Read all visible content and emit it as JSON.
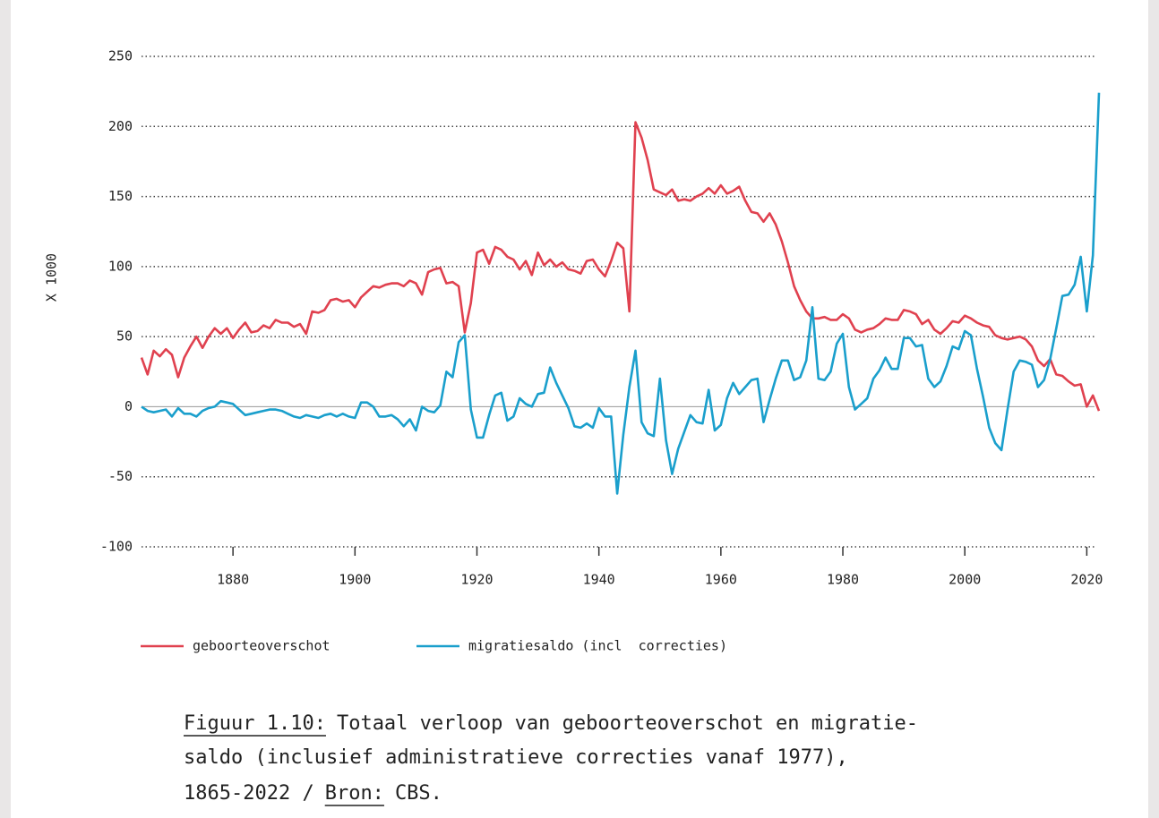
{
  "chart_data": {
    "type": "line",
    "y_axis_label": "X 1000",
    "x": [
      1865,
      1866,
      1867,
      1868,
      1869,
      1870,
      1871,
      1872,
      1873,
      1874,
      1875,
      1876,
      1877,
      1878,
      1879,
      1880,
      1881,
      1882,
      1883,
      1884,
      1885,
      1886,
      1887,
      1888,
      1889,
      1890,
      1891,
      1892,
      1893,
      1894,
      1895,
      1896,
      1897,
      1898,
      1899,
      1900,
      1901,
      1902,
      1903,
      1904,
      1905,
      1906,
      1907,
      1908,
      1909,
      1910,
      1911,
      1912,
      1913,
      1914,
      1915,
      1916,
      1917,
      1918,
      1919,
      1920,
      1921,
      1922,
      1923,
      1924,
      1925,
      1926,
      1927,
      1928,
      1929,
      1930,
      1931,
      1932,
      1933,
      1934,
      1935,
      1936,
      1937,
      1938,
      1939,
      1940,
      1941,
      1942,
      1943,
      1944,
      1945,
      1946,
      1947,
      1948,
      1949,
      1950,
      1951,
      1952,
      1953,
      1954,
      1955,
      1956,
      1957,
      1958,
      1959,
      1960,
      1961,
      1962,
      1963,
      1964,
      1965,
      1966,
      1967,
      1968,
      1969,
      1970,
      1971,
      1972,
      1973,
      1974,
      1975,
      1976,
      1977,
      1978,
      1979,
      1980,
      1981,
      1982,
      1983,
      1984,
      1985,
      1986,
      1987,
      1988,
      1989,
      1990,
      1991,
      1992,
      1993,
      1994,
      1995,
      1996,
      1997,
      1998,
      1999,
      2000,
      2001,
      2002,
      2003,
      2004,
      2005,
      2006,
      2007,
      2008,
      2009,
      2010,
      2011,
      2012,
      2013,
      2014,
      2015,
      2016,
      2017,
      2018,
      2019,
      2020,
      2021,
      2022
    ],
    "series": [
      {
        "name": "geboorteoverschot",
        "color": "#e0414f",
        "values": [
          35,
          23,
          40,
          36,
          41,
          37,
          21,
          35,
          43,
          50,
          42,
          50,
          56,
          52,
          56,
          49,
          55,
          60,
          53,
          54,
          58,
          56,
          62,
          60,
          60,
          57,
          59,
          52,
          68,
          67,
          69,
          76,
          77,
          75,
          76,
          71,
          78,
          82,
          86,
          85,
          87,
          88,
          88,
          86,
          90,
          88,
          80,
          96,
          98,
          99,
          88,
          89,
          86,
          53,
          74,
          110,
          112,
          102,
          114,
          112,
          107,
          105,
          98,
          104,
          94,
          110,
          101,
          105,
          100,
          103,
          98,
          97,
          95,
          104,
          105,
          98,
          93,
          104,
          117,
          113,
          68,
          203,
          192,
          176,
          155,
          153,
          151,
          155,
          147,
          148,
          147,
          150,
          152,
          156,
          152,
          158,
          152,
          154,
          157,
          147,
          139,
          138,
          132,
          138,
          130,
          118,
          103,
          86,
          76,
          68,
          63,
          63,
          64,
          62,
          62,
          66,
          63,
          55,
          53,
          55,
          56,
          59,
          63,
          62,
          62,
          69,
          68,
          66,
          59,
          62,
          55,
          52,
          56,
          61,
          60,
          65,
          63,
          60,
          58,
          57,
          51,
          49,
          48,
          49,
          50,
          48,
          43,
          33,
          29,
          34,
          23,
          22,
          18,
          15,
          16,
          0,
          8,
          -3
        ]
      },
      {
        "name": "migratiesaldo (incl  correcties)",
        "color": "#1a9fcc",
        "values": [
          0,
          -3,
          -4,
          -3,
          -2,
          -7,
          -1,
          -5,
          -5,
          -7,
          -3,
          -1,
          0,
          4,
          3,
          2,
          -2,
          -6,
          -5,
          -4,
          -3,
          -2,
          -2,
          -3,
          -5,
          -7,
          -8,
          -6,
          -7,
          -8,
          -6,
          -5,
          -7,
          -5,
          -7,
          -8,
          3,
          3,
          0,
          -7,
          -7,
          -6,
          -9,
          -14,
          -9,
          -17,
          0,
          -3,
          -4,
          1,
          25,
          21,
          46,
          51,
          -2,
          -22,
          -22,
          -6,
          8,
          10,
          -10,
          -7,
          6,
          2,
          0,
          9,
          10,
          28,
          17,
          8,
          -1,
          -14,
          -15,
          -12,
          -15,
          -1,
          -7,
          -7,
          -62,
          -20,
          14,
          40,
          -11,
          -19,
          -21,
          20,
          -24,
          -48,
          -30,
          -18,
          -6,
          -11,
          -12,
          12,
          -17,
          -13,
          6,
          17,
          9,
          14,
          19,
          20,
          -11,
          5,
          20,
          33,
          33,
          19,
          21,
          33,
          71,
          20,
          19,
          25,
          45,
          52,
          14,
          -2,
          2,
          6,
          20,
          26,
          35,
          27,
          27,
          49,
          49,
          43,
          44,
          20,
          14,
          18,
          29,
          43,
          41,
          54,
          51,
          27,
          7,
          -15,
          -26,
          -31,
          -2,
          25,
          33,
          32,
          30,
          14,
          19,
          34,
          56,
          79,
          80,
          87,
          107,
          68,
          108,
          224
        ]
      }
    ],
    "xlim": [
      1865,
      2022
    ],
    "xticks": [
      1880,
      1900,
      1920,
      1940,
      1960,
      1980,
      2000,
      2020
    ],
    "ylim": [
      -100,
      250
    ],
    "yticks": [
      -100,
      -50,
      0,
      50,
      100,
      150,
      200,
      250
    ],
    "grid": true,
    "legend": "bottom",
    "caption": {
      "label": "Figuur 1.10:",
      "lines": [
        "Totaal verloop van geboorteoverschot en migratie-",
        "saldo (inclusief administratieve correcties vanaf 1977),",
        "1865-2022 /"
      ],
      "source_label": "Bron:",
      "source": "CBS."
    }
  }
}
